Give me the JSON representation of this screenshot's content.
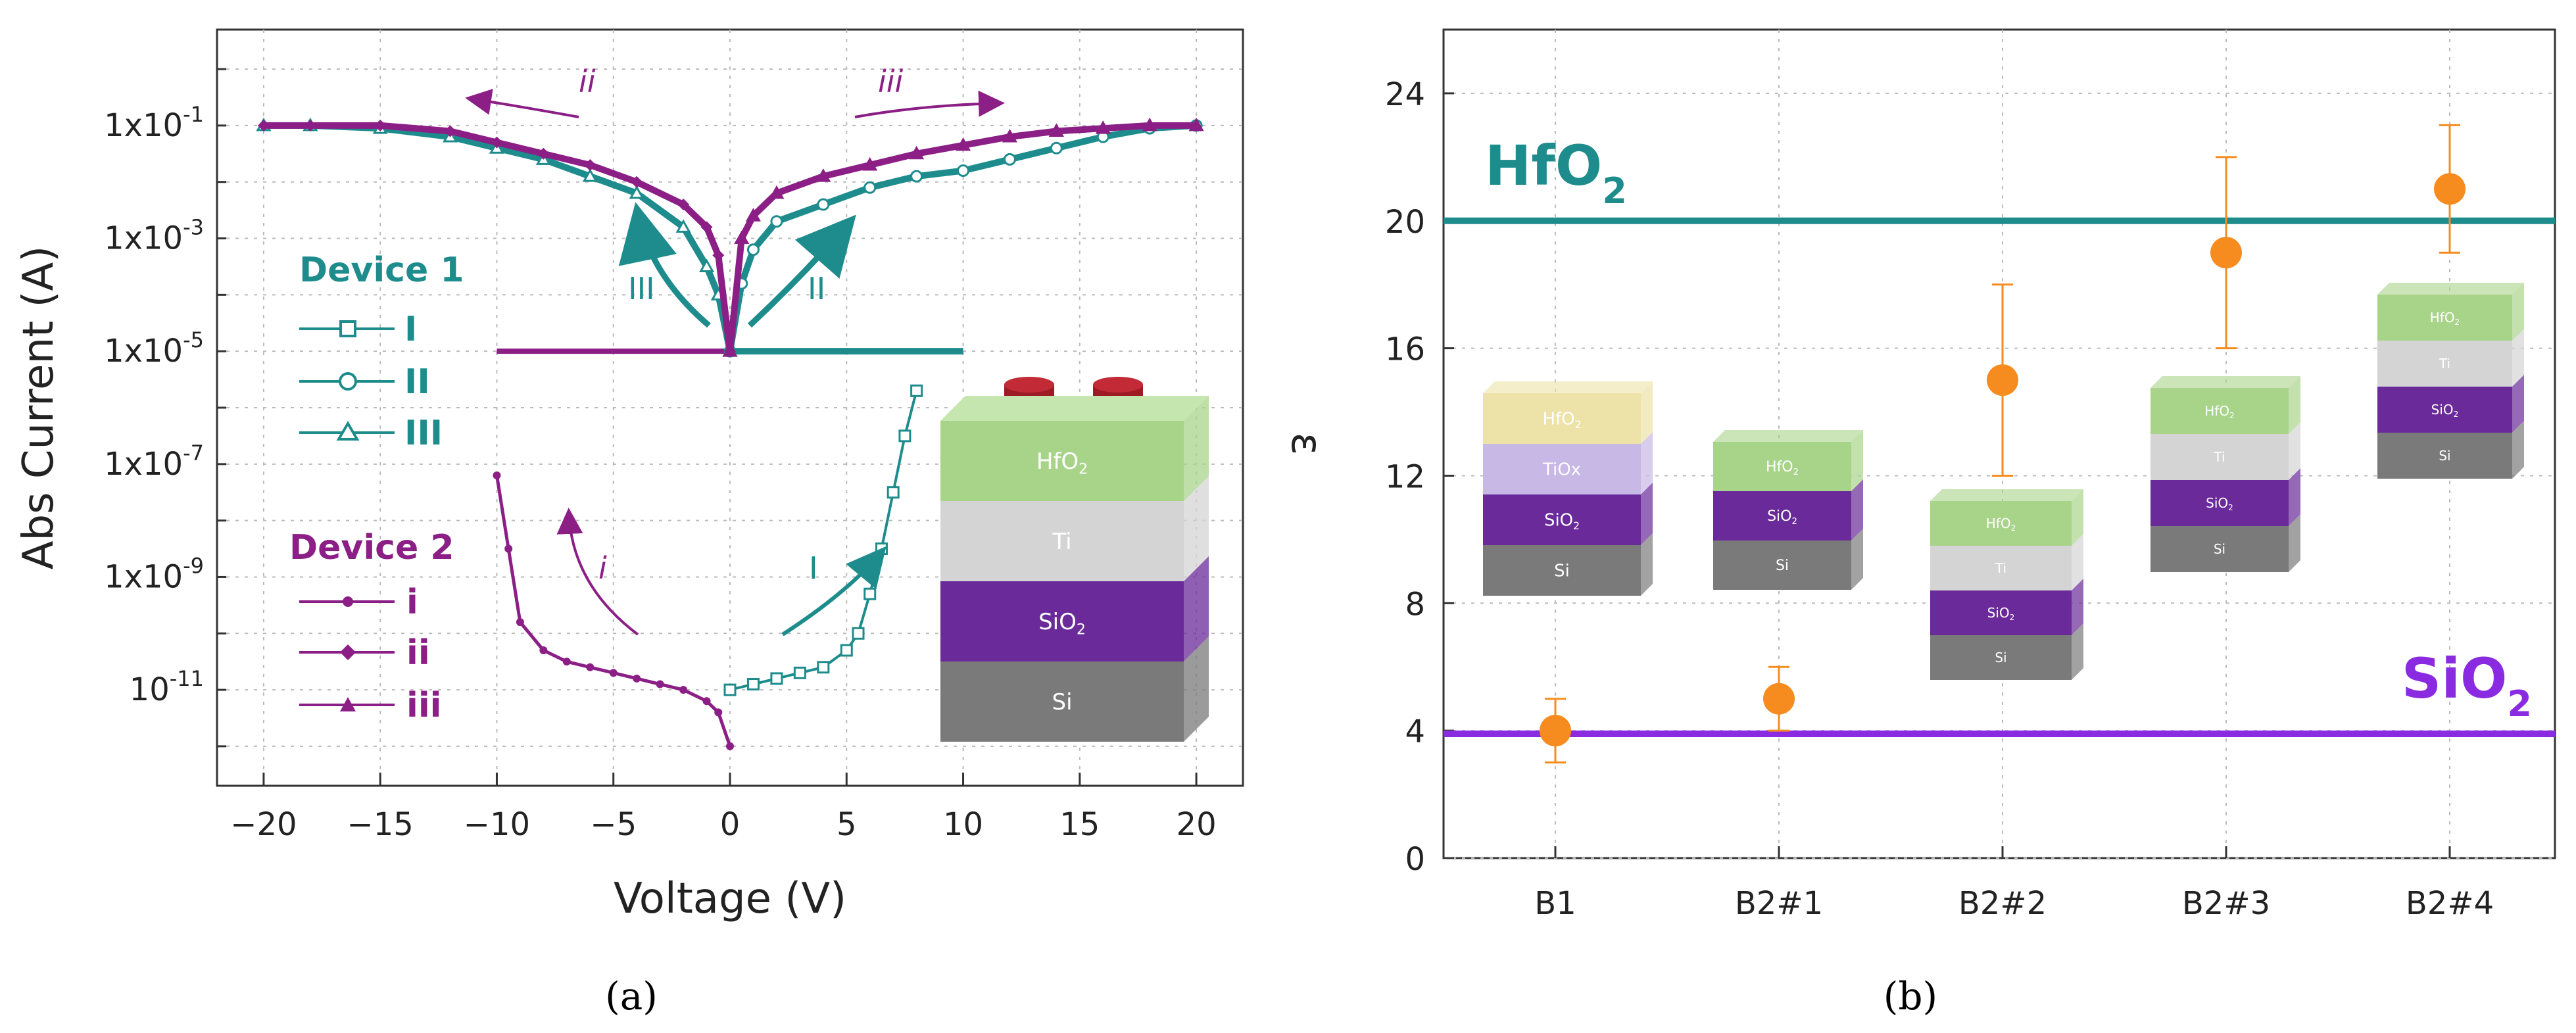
{
  "colors": {
    "teal": "#1e8c8c",
    "purple": "#8b1f86",
    "orange": "#f68b1f",
    "violet": "#8a2be2",
    "hfo2": "#a8d48a",
    "ti": "#d4d4d4",
    "sio2": "#6a2a9a",
    "si": "#7a7a7a",
    "tiox": "#c7b8e6",
    "hfo2_top": "#ede3a8",
    "electrode": "#9c1b24"
  },
  "chart_data": [
    {
      "type": "line",
      "panel": "(a)",
      "xlabel": "Voltage (V)",
      "ylabel": "Abs Current (A)",
      "xlim": [
        -22,
        22
      ],
      "yscale": "log",
      "ylim_exp": [
        -12.7,
        0.7
      ],
      "xticks": [
        -20,
        -15,
        -10,
        -5,
        0,
        5,
        10,
        15,
        20
      ],
      "yticks": [
        {
          "exp": -1,
          "label": "1x10-1",
          "base": "1x10",
          "sup": "-1"
        },
        {
          "exp": -3,
          "label": "1x10-3",
          "base": "1x10",
          "sup": "-3"
        },
        {
          "exp": -5,
          "label": "1x10-5",
          "base": "1x10",
          "sup": "-5"
        },
        {
          "exp": -7,
          "label": "1x10-7",
          "base": "1x10",
          "sup": "-7"
        },
        {
          "exp": -9,
          "label": "1x10-9",
          "base": "1x10",
          "sup": "-9"
        },
        {
          "exp": -11,
          "label": "10-11",
          "base": "10",
          "sup": "-11"
        }
      ],
      "legend": {
        "device1": {
          "title": "Device 1",
          "items": [
            "I",
            "II",
            "III"
          ]
        },
        "device2": {
          "title": "Device 2",
          "items": [
            "i",
            "ii",
            "iii"
          ]
        }
      },
      "annotations": {
        "sweep_ii": "ii",
        "sweep_iii": "iii",
        "sweep_III": "III",
        "sweep_II": "II",
        "sweep_i": "i",
        "sweep_I": "I"
      },
      "series": [
        {
          "name": "Device 1 I",
          "x": [
            0,
            1,
            2,
            3,
            4,
            5,
            5.5,
            6,
            6.5,
            7,
            7.5,
            8
          ],
          "log10_y": [
            -11,
            -10.9,
            -10.8,
            -10.7,
            -10.6,
            -10.3,
            -10,
            -9.3,
            -8.5,
            -7.5,
            -6.5,
            -5.7
          ]
        },
        {
          "name": "Device 1 II",
          "x": [
            0,
            0.5,
            1,
            2,
            4,
            6,
            8,
            10,
            12,
            14,
            16,
            18,
            20
          ],
          "log10_y": [
            -5,
            -3.8,
            -3.2,
            -2.7,
            -2.4,
            -2.1,
            -1.9,
            -1.8,
            -1.6,
            -1.4,
            -1.2,
            -1.05,
            -1
          ]
        },
        {
          "name": "Device 1 III",
          "x": [
            -20,
            -18,
            -15,
            -12,
            -10,
            -8,
            -6,
            -4,
            -2,
            -1,
            -0.5,
            0
          ],
          "log10_y": [
            -1,
            -1,
            -1.05,
            -1.2,
            -1.4,
            -1.6,
            -1.9,
            -2.2,
            -2.8,
            -3.5,
            -4,
            -5
          ]
        },
        {
          "name": "Device 1 compliance",
          "x": [
            0,
            10
          ],
          "log10_y": [
            -5,
            -5
          ]
        },
        {
          "name": "Device 2 i",
          "x": [
            -10,
            -9.5,
            -9,
            -8,
            -7,
            -6,
            -5,
            -4,
            -3,
            -2,
            -1,
            -0.5,
            0
          ],
          "log10_y": [
            -7.2,
            -8.5,
            -9.8,
            -10.3,
            -10.5,
            -10.6,
            -10.7,
            -10.8,
            -10.9,
            -11,
            -11.2,
            -11.4,
            -12
          ]
        },
        {
          "name": "Device 2 ii",
          "x": [
            -20,
            -18,
            -15,
            -12,
            -10,
            -8,
            -6,
            -4,
            -2,
            -1,
            -0.5,
            0
          ],
          "log10_y": [
            -1,
            -1,
            -1,
            -1.1,
            -1.3,
            -1.5,
            -1.7,
            -2,
            -2.4,
            -2.8,
            -3.3,
            -5
          ]
        },
        {
          "name": "Device 2 iii",
          "x": [
            0,
            0.5,
            1,
            2,
            4,
            6,
            8,
            10,
            12,
            14,
            16,
            18,
            20
          ],
          "log10_y": [
            -5,
            -3,
            -2.6,
            -2.2,
            -1.9,
            -1.7,
            -1.5,
            -1.35,
            -1.2,
            -1.1,
            -1.05,
            -1,
            -1
          ]
        },
        {
          "name": "Device 2 compliance",
          "x": [
            -10,
            0
          ],
          "log10_y": [
            -5,
            -5
          ]
        }
      ]
    },
    {
      "type": "scatter",
      "panel": "(b)",
      "xlabel": "",
      "ylabel": "ε",
      "ylim": [
        0,
        26
      ],
      "yticks": [
        0,
        4,
        8,
        12,
        16,
        20,
        24
      ],
      "categories": [
        "B1",
        "B2#1",
        "B2#2",
        "B2#3",
        "B2#4"
      ],
      "values": [
        4,
        5,
        15,
        19,
        21
      ],
      "error_low": [
        3,
        4,
        12,
        16,
        19
      ],
      "error_high": [
        5,
        6,
        18,
        22,
        23
      ],
      "reference_lines": [
        {
          "name": "HfO2",
          "label": "HfO",
          "sub": "2",
          "value": 20
        },
        {
          "name": "SiO2",
          "label": "SiO",
          "sub": "2",
          "value": 3.9
        }
      ]
    }
  ],
  "inset_a": {
    "layers": [
      {
        "label": "HfO",
        "sub": "2"
      },
      {
        "label": "Ti",
        "sub": ""
      },
      {
        "label": "SiO",
        "sub": "2"
      },
      {
        "label": "Si",
        "sub": ""
      }
    ]
  },
  "stacks_b": {
    "B1": [
      {
        "label": "HfO",
        "sub": "2"
      },
      {
        "label": "TiOx",
        "sub": ""
      },
      {
        "label": "SiO",
        "sub": "2"
      },
      {
        "label": "Si",
        "sub": ""
      }
    ],
    "B2#1": [
      {
        "label": "HfO",
        "sub": "2"
      },
      {
        "label": "SiO",
        "sub": "2"
      },
      {
        "label": "Si",
        "sub": ""
      }
    ],
    "B2#2": [
      {
        "label": "HfO",
        "sub": "2"
      },
      {
        "label": "Ti",
        "sub": ""
      },
      {
        "label": "SiO",
        "sub": "2"
      },
      {
        "label": "Si",
        "sub": ""
      }
    ],
    "B2#3": [
      {
        "label": "HfO",
        "sub": "2"
      },
      {
        "label": "Ti",
        "sub": ""
      },
      {
        "label": "SiO",
        "sub": "2"
      },
      {
        "label": "Si",
        "sub": ""
      }
    ],
    "B2#4": [
      {
        "label": "HfO",
        "sub": "2"
      },
      {
        "label": "Ti",
        "sub": ""
      },
      {
        "label": "SiO",
        "sub": "2"
      },
      {
        "label": "Si",
        "sub": ""
      }
    ]
  },
  "captions": {
    "a": "(a)",
    "b": "(b)"
  }
}
